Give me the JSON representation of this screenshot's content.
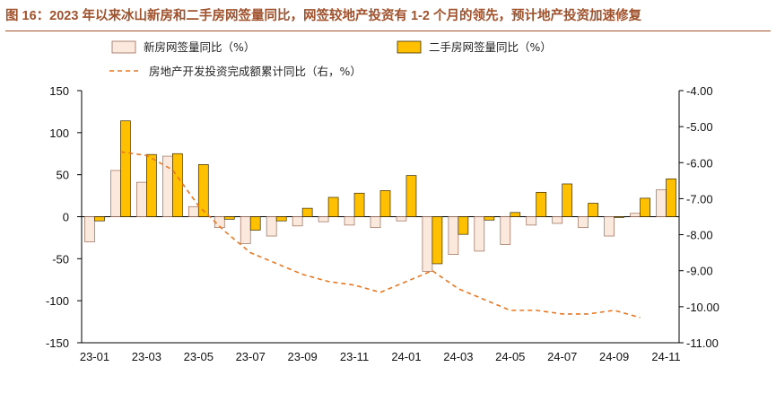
{
  "title": "图 16：2023 年以来冰山新房和二手房网签量同比，网签较地产投资有 1-2 个月的领先，预计地产投资加速修复",
  "colors": {
    "new_house_fill": "#fbe9dd",
    "new_house_stroke": "#9b6a57",
    "second_hand_fill": "#ffc000",
    "second_hand_stroke": "#3a2a00",
    "investment_line": "#e87722",
    "title": "#a0522d"
  },
  "chart_data": {
    "type": "bar",
    "x_tick_labels": [
      "23-01",
      "23-03",
      "23-05",
      "23-07",
      "23-09",
      "23-11",
      "24-01",
      "24-03",
      "24-05",
      "24-07",
      "24-09",
      "24-11"
    ],
    "categories": [
      "23-01",
      "23-02",
      "23-03",
      "23-04",
      "23-05",
      "23-06",
      "23-07",
      "23-08",
      "23-09",
      "23-10",
      "23-11",
      "23-12",
      "24-01",
      "24-02",
      "24-03",
      "24-04",
      "24-05",
      "24-06",
      "24-07",
      "24-08",
      "24-09",
      "24-10",
      "24-11"
    ],
    "y_left": {
      "ylim": [
        -150,
        150
      ],
      "ticks": [
        150,
        100,
        50,
        0,
        -50,
        -100,
        -150
      ],
      "tick_labels": [
        "150",
        "100",
        "50",
        "0",
        "-50",
        "-100",
        "-150"
      ]
    },
    "y_right": {
      "ylim": [
        -11.0,
        -4.0
      ],
      "ticks": [
        -4.0,
        -5.0,
        -6.0,
        -7.0,
        -8.0,
        -9.0,
        -10.0,
        -11.0
      ],
      "tick_labels": [
        "-4.00",
        "-5.00",
        "-6.00",
        "-7.00",
        "-8.00",
        "-9.00",
        "-10.00",
        "-11.00"
      ]
    },
    "series": [
      {
        "name": "新房网签量同比（%）",
        "type": "bar",
        "axis": "left",
        "values": [
          -30,
          55,
          41,
          72,
          12,
          -13,
          -32,
          -23,
          -11,
          -6,
          -10,
          -13,
          -5,
          -65,
          -45,
          -41,
          -33,
          -10,
          -8,
          -13,
          -23,
          4,
          32
        ]
      },
      {
        "name": "二手房网签量同比（%）",
        "type": "bar",
        "axis": "left",
        "values": [
          -5,
          114,
          74,
          75,
          62,
          -3,
          -16,
          -5,
          10,
          23,
          28,
          31,
          49,
          -56,
          -21,
          -4,
          5,
          29,
          39,
          16,
          -1,
          22,
          45
        ]
      },
      {
        "name": "房地产开发投资完成额累计同比（右，%）",
        "type": "line",
        "axis": "right",
        "style": "dashed",
        "values": [
          null,
          -5.7,
          -5.8,
          -6.2,
          -7.2,
          -7.9,
          -8.5,
          -8.8,
          -9.1,
          -9.3,
          -9.4,
          -9.6,
          null,
          -9.0,
          -9.5,
          -9.8,
          -10.1,
          -10.1,
          -10.2,
          -10.2,
          -10.1,
          -10.3,
          null
        ]
      }
    ],
    "legend": {
      "placement": "top-left",
      "entries": [
        "新房网签量同比（%）",
        "二手房网签量同比（%）",
        "房地产开发投资完成额累计同比（右，%）"
      ]
    },
    "grid": false
  }
}
